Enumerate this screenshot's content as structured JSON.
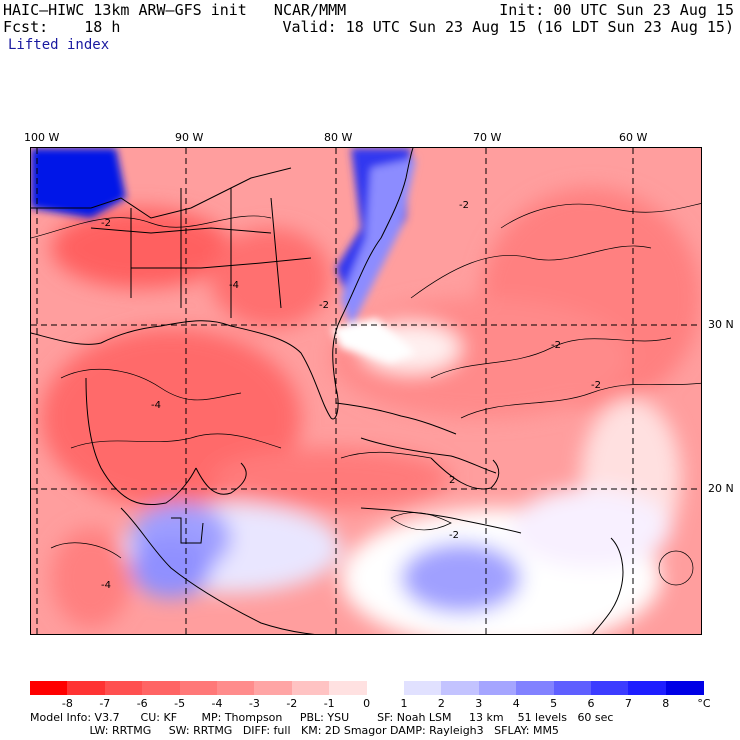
{
  "header": {
    "model_line": "HAIC–HIWC 13km ARW–GFS init   NCAR/MMM",
    "fcst_line": "Fcst:    18 h",
    "field_name": "Lifted index",
    "init_line": "Init: 00 UTC Sun 23 Aug 15",
    "valid_line": "Valid: 18 UTC Sun 23 Aug 15 (16 LDT Sun 23 Aug 15)"
  },
  "axes": {
    "lon_labels": [
      "100 W",
      "90 W",
      "80 W",
      "70 W",
      "60 W"
    ],
    "lat_labels": [
      "30 N",
      "20 N"
    ]
  },
  "contour_labels": [
    "-2",
    "-2",
    "-4",
    "-2",
    "-4",
    "-2",
    "-2",
    "-2",
    "-4",
    "2"
  ],
  "colorbar": {
    "labels": [
      "-8",
      "-7",
      "-6",
      "-5",
      "-4",
      "-3",
      "-2",
      "-1",
      "0",
      "1",
      "2",
      "3",
      "4",
      "5",
      "6",
      "7",
      "8"
    ],
    "unit": "°C",
    "colors": [
      "#ff0000",
      "#ff3333",
      "#ff5050",
      "#ff6464",
      "#ff7878",
      "#ff8c8c",
      "#ffa5a5",
      "#ffc3c3",
      "#ffe1e1",
      "#ffffff",
      "#e1e1ff",
      "#c3c3ff",
      "#a5a5ff",
      "#8282ff",
      "#5f5fff",
      "#3c3cff",
      "#1e1eff",
      "#0000e6"
    ]
  },
  "model_info": {
    "line1": "Model Info: V3.7      CU: KF       MP: Thompson     PBL: YSU        SF: Noah LSM     13 km    51 levels   60 sec",
    "line2": "                 LW: RRTMG     SW: RRTMG   DIFF: full   KM: 2D Smagor DAMP: Rayleigh3   SFLAY: MM5"
  }
}
